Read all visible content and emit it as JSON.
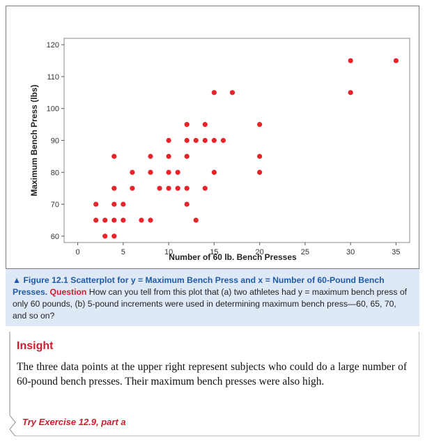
{
  "chart_data": {
    "type": "scatter",
    "xlabel": "Number of 60 lb. Bench Presses",
    "ylabel": "Maximum Bench Press (lbs)",
    "xlim": [
      -1.5,
      36.5
    ],
    "ylim": [
      58,
      122
    ],
    "xticks": [
      0,
      5,
      10,
      15,
      20,
      25,
      30,
      35
    ],
    "yticks": [
      60,
      70,
      80,
      90,
      100,
      110,
      120
    ],
    "grid": false,
    "marker_color": "#e8232a",
    "points": [
      {
        "x": 2,
        "y": 65
      },
      {
        "x": 2,
        "y": 70
      },
      {
        "x": 3,
        "y": 60
      },
      {
        "x": 3,
        "y": 65
      },
      {
        "x": 4,
        "y": 60
      },
      {
        "x": 4,
        "y": 65
      },
      {
        "x": 4,
        "y": 70
      },
      {
        "x": 4,
        "y": 75
      },
      {
        "x": 4,
        "y": 85
      },
      {
        "x": 5,
        "y": 65
      },
      {
        "x": 5,
        "y": 70
      },
      {
        "x": 6,
        "y": 75
      },
      {
        "x": 6,
        "y": 80
      },
      {
        "x": 7,
        "y": 65
      },
      {
        "x": 8,
        "y": 65
      },
      {
        "x": 8,
        "y": 80
      },
      {
        "x": 8,
        "y": 85
      },
      {
        "x": 9,
        "y": 75
      },
      {
        "x": 10,
        "y": 75
      },
      {
        "x": 10,
        "y": 80
      },
      {
        "x": 10,
        "y": 85
      },
      {
        "x": 10,
        "y": 90
      },
      {
        "x": 11,
        "y": 75
      },
      {
        "x": 11,
        "y": 80
      },
      {
        "x": 12,
        "y": 70
      },
      {
        "x": 12,
        "y": 75
      },
      {
        "x": 12,
        "y": 85
      },
      {
        "x": 12,
        "y": 90
      },
      {
        "x": 12,
        "y": 95
      },
      {
        "x": 13,
        "y": 65
      },
      {
        "x": 13,
        "y": 90
      },
      {
        "x": 14,
        "y": 75
      },
      {
        "x": 14,
        "y": 90
      },
      {
        "x": 14,
        "y": 95
      },
      {
        "x": 15,
        "y": 80
      },
      {
        "x": 15,
        "y": 90
      },
      {
        "x": 15,
        "y": 105
      },
      {
        "x": 16,
        "y": 90
      },
      {
        "x": 17,
        "y": 105
      },
      {
        "x": 20,
        "y": 80
      },
      {
        "x": 20,
        "y": 85
      },
      {
        "x": 20,
        "y": 95
      },
      {
        "x": 30,
        "y": 105
      },
      {
        "x": 30,
        "y": 115
      },
      {
        "x": 35,
        "y": 115
      }
    ]
  },
  "caption": {
    "figure_label": "▲ Figure 12.1",
    "title_text": "Scatterplot for y = Maximum Bench Press and x = Number of 60-Pound Bench Presses.",
    "question_label": "Question",
    "question_text": "How can you tell from this plot that (a) two athletes had y = maximum bench press of only 60 pounds, (b) 5-pound increments were used in determining maximum bench press—60, 65, 70, and so on?"
  },
  "insight": {
    "heading": "Insight",
    "body": "The three data points at the upper right represent subjects who could do a large number of 60-pound bench presses. Their maximum bench presses were also high.",
    "try_exercise": "Try Exercise 12.9, part a"
  },
  "colors": {
    "accent_red": "#c8202f",
    "caption_blue": "#1f5aa8",
    "caption_bg": "#dfe9f6"
  }
}
